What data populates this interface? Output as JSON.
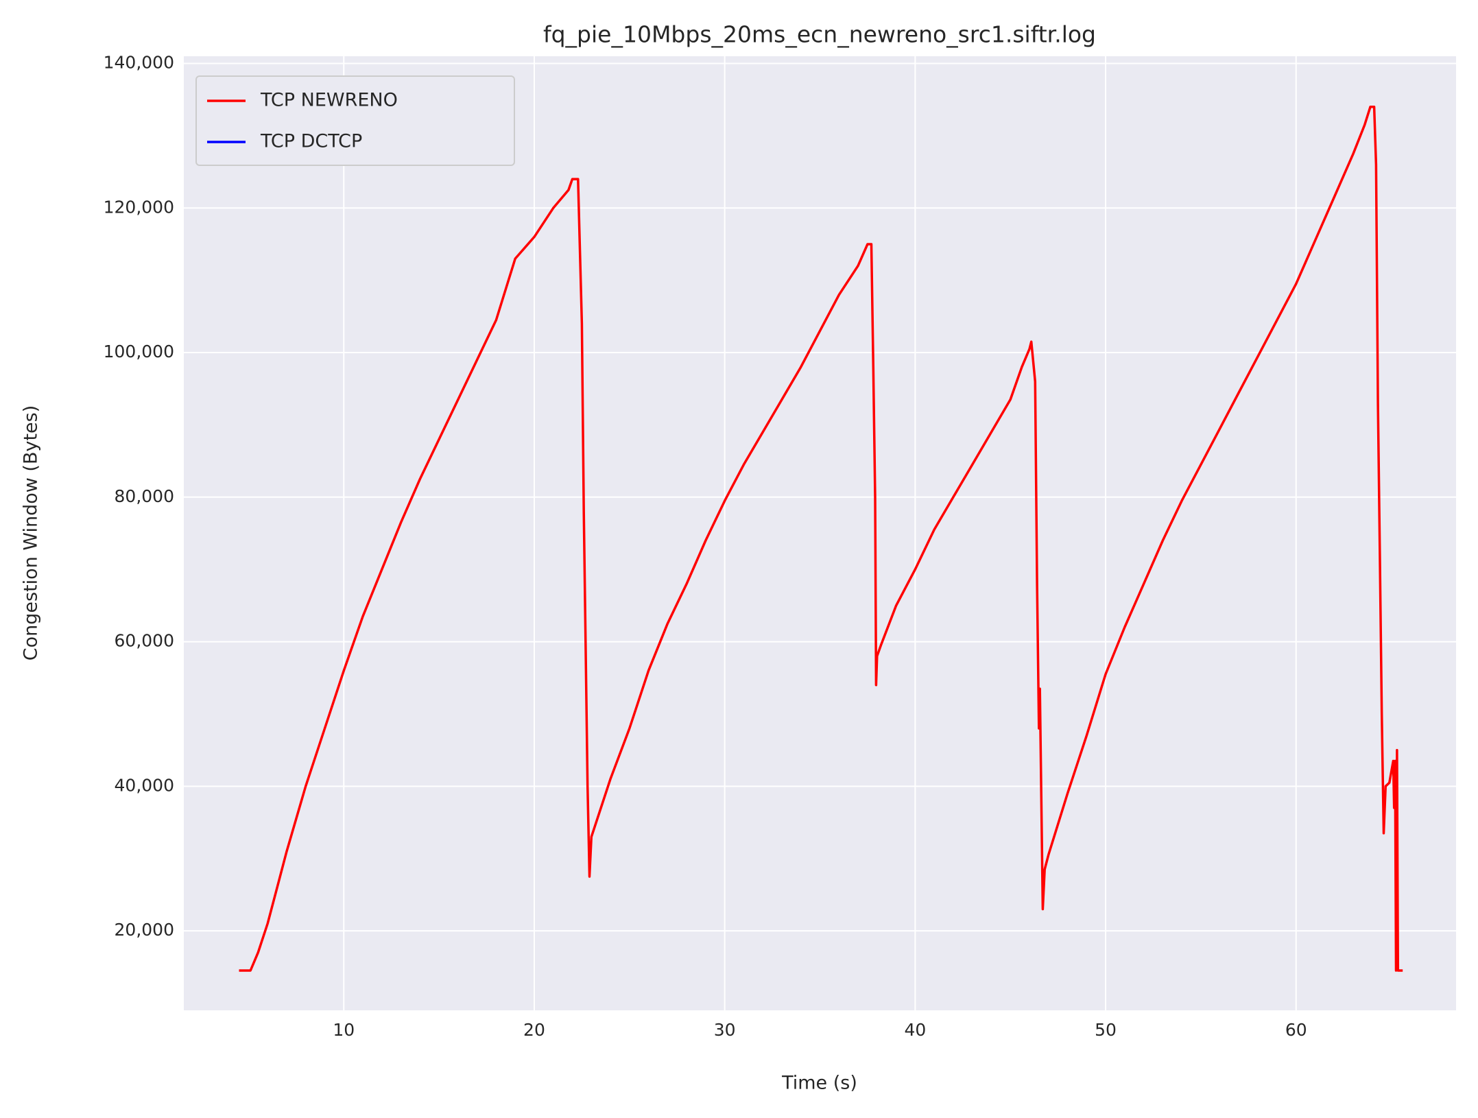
{
  "chart_data": {
    "type": "line",
    "title": "fq_pie_10Mbps_20ms_ecn_newreno_src1.siftr.log",
    "x_label": "Time (s)",
    "y_label": "Congestion Window (Bytes)",
    "xlim": [
      1.6,
      68.4
    ],
    "ylim": [
      9000,
      141000
    ],
    "xticks": [
      10,
      20,
      30,
      40,
      50,
      60
    ],
    "yticks": [
      {
        "value": 20000,
        "label": "20,000"
      },
      {
        "value": 40000,
        "label": "40,000"
      },
      {
        "value": 60000,
        "label": "60,000"
      },
      {
        "value": 80000,
        "label": "80,000"
      },
      {
        "value": 100000,
        "label": "100,000"
      },
      {
        "value": 120000,
        "label": "120,000"
      },
      {
        "value": 140000,
        "label": "140,000"
      }
    ],
    "grid": true,
    "legend": "upper left",
    "series": [
      {
        "name": "TCP NEWRENO",
        "color": "#ff0000",
        "x": [
          4.5,
          5.1,
          5.5,
          6,
          6.5,
          7,
          8,
          9,
          10,
          11,
          12,
          13,
          14,
          15,
          16,
          17,
          18,
          19,
          20,
          21,
          21.8,
          22,
          22.3,
          22.4,
          22.5,
          22.6,
          22.8,
          22.9,
          23,
          24,
          25,
          26,
          27,
          28,
          29,
          30,
          31,
          32,
          33,
          34,
          35,
          36,
          37,
          37.5,
          37.7,
          37.8,
          37.9,
          37.95,
          38,
          38.2,
          39,
          40,
          41,
          42,
          43,
          44,
          45,
          45.6,
          46,
          46.1,
          46.3,
          46.4,
          46.5,
          46.55,
          46.7,
          46.8,
          47,
          48,
          49,
          50,
          51,
          52,
          53,
          54,
          55,
          56,
          57,
          58,
          59,
          60,
          61,
          62,
          63,
          63.6,
          63.9,
          64.1,
          64.2,
          64.3,
          64.4,
          64.5,
          64.6,
          64.7,
          64.9,
          65.1,
          65.15,
          65.2,
          65.25,
          65.3,
          65.35,
          65.6
        ],
        "values": [
          14500,
          14500,
          17000,
          21000,
          26000,
          31000,
          40000,
          48000,
          56000,
          63500,
          70000,
          76500,
          82500,
          88000,
          93500,
          99000,
          104500,
          113000,
          116000,
          120000,
          122500,
          124000,
          124000,
          114000,
          104000,
          78000,
          40000,
          27500,
          33000,
          41000,
          48000,
          56000,
          62500,
          68000,
          74000,
          79500,
          84500,
          89000,
          93500,
          98000,
          103000,
          108000,
          112000,
          115000,
          115000,
          98000,
          80000,
          54000,
          58000,
          59500,
          65000,
          70000,
          75500,
          80000,
          84500,
          89000,
          93500,
          98000,
          100500,
          101500,
          96000,
          68000,
          48000,
          53500,
          23000,
          28500,
          30500,
          39000,
          47000,
          55500,
          62000,
          68000,
          74000,
          79500,
          84500,
          89500,
          94500,
          99500,
          104500,
          109500,
          115500,
          121500,
          127500,
          131500,
          134000,
          134000,
          126000,
          93000,
          72000,
          50000,
          33500,
          40000,
          40500,
          43500,
          37000,
          43500,
          14500,
          45000,
          14500,
          14500
        ]
      },
      {
        "name": "TCP DCTCP",
        "color": "#0000ff",
        "x": [],
        "values": []
      }
    ]
  }
}
